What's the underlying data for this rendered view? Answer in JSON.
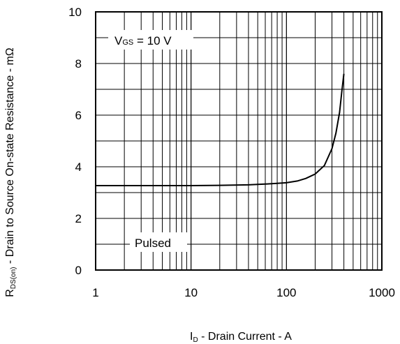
{
  "chart_data": {
    "type": "line",
    "xscale": "log",
    "xlim": [
      1,
      1000
    ],
    "ylim": [
      0,
      10
    ],
    "grid": true,
    "x_ticks": [
      1,
      10,
      100,
      1000
    ],
    "y_ticks": [
      0,
      2,
      4,
      6,
      8,
      10
    ],
    "x_tick_labels": [
      "1",
      "10",
      "100",
      "1000"
    ],
    "y_tick_labels": [
      "0",
      "2",
      "4",
      "6",
      "8",
      "10"
    ],
    "xlabel": {
      "main": "I",
      "sub": "D",
      "rest": " - Drain Current - A"
    },
    "ylabel": {
      "main": "R",
      "sub": "DS(on)",
      "rest": " - Drain to Source On-state Resistance - mΩ"
    },
    "annotations": [
      {
        "main": "V",
        "sub": "GS",
        "rest": " = 10 V"
      },
      {
        "text": "Pulsed"
      }
    ],
    "series": [
      {
        "x": [
          1,
          2,
          5,
          10,
          20,
          40,
          60,
          80,
          100,
          130,
          160,
          200,
          250,
          300,
          330,
          360,
          380,
          400
        ],
        "y": [
          3.27,
          3.27,
          3.27,
          3.27,
          3.28,
          3.3,
          3.33,
          3.36,
          3.38,
          3.45,
          3.55,
          3.72,
          4.05,
          4.7,
          5.3,
          6.1,
          6.9,
          7.6
        ]
      }
    ],
    "color": "#000000"
  }
}
